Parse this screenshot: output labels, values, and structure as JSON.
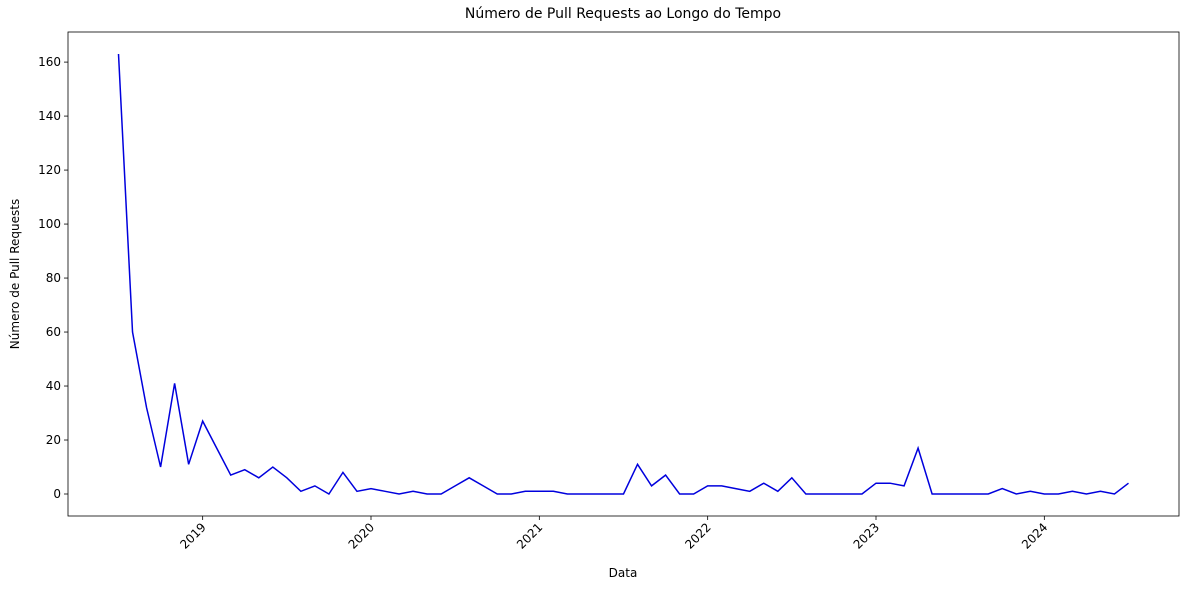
{
  "chart_data": {
    "type": "line",
    "title": "Número de Pull Requests ao Longo do Tempo",
    "xlabel": "Data",
    "ylabel": "Número de Pull Requests",
    "x": [
      "2018-07",
      "2018-08",
      "2018-09",
      "2018-10",
      "2018-11",
      "2018-12",
      "2019-01",
      "2019-02",
      "2019-03",
      "2019-04",
      "2019-05",
      "2019-06",
      "2019-07",
      "2019-08",
      "2019-09",
      "2019-10",
      "2019-11",
      "2019-12",
      "2020-01",
      "2020-02",
      "2020-03",
      "2020-04",
      "2020-05",
      "2020-06",
      "2020-07",
      "2020-08",
      "2020-09",
      "2020-10",
      "2020-11",
      "2020-12",
      "2021-01",
      "2021-02",
      "2021-03",
      "2021-04",
      "2021-05",
      "2021-06",
      "2021-07",
      "2021-08",
      "2021-09",
      "2021-10",
      "2021-11",
      "2021-12",
      "2022-01",
      "2022-02",
      "2022-03",
      "2022-04",
      "2022-05",
      "2022-06",
      "2022-07",
      "2022-08",
      "2022-09",
      "2022-10",
      "2022-11",
      "2022-12",
      "2023-01",
      "2023-02",
      "2023-03",
      "2023-04",
      "2023-05",
      "2023-06",
      "2023-07",
      "2023-08",
      "2023-09",
      "2023-10",
      "2023-11",
      "2023-12",
      "2024-01",
      "2024-02",
      "2024-03",
      "2024-04",
      "2024-05",
      "2024-06",
      "2024-07"
    ],
    "series": [
      {
        "name": "Pull Requests",
        "color": "#0000dd",
        "values": [
          163,
          60,
          32,
          10,
          41,
          11,
          27,
          17,
          7,
          9,
          6,
          10,
          6,
          1,
          3,
          0,
          8,
          1,
          2,
          1,
          0,
          1,
          0,
          0,
          3,
          6,
          3,
          0,
          0,
          1,
          1,
          1,
          0,
          0,
          0,
          0,
          0,
          11,
          3,
          7,
          0,
          0,
          3,
          3,
          2,
          1,
          4,
          1,
          6,
          0,
          0,
          0,
          0,
          0,
          4,
          4,
          3,
          17,
          0,
          0,
          0,
          0,
          0,
          2,
          0,
          1,
          0,
          0,
          1,
          0,
          1,
          0,
          4
        ]
      }
    ],
    "xlim": [
      2018.2,
      2024.8
    ],
    "xticks": [
      2019,
      2020,
      2021,
      2022,
      2023,
      2024
    ],
    "ylim": [
      -8.15,
      171.15
    ],
    "yticks": [
      0,
      20,
      40,
      60,
      80,
      100,
      120,
      140,
      160
    ],
    "grid": false
  }
}
